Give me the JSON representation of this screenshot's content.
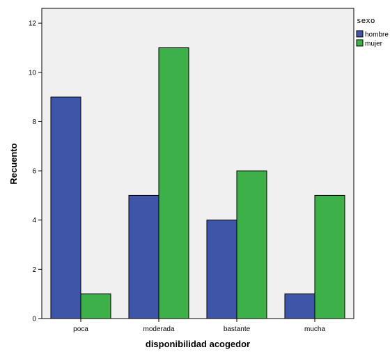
{
  "chart_data": {
    "type": "bar",
    "xlabel": "disponibilidad acogedor",
    "ylabel": "Recuento",
    "categories": [
      "poca",
      "moderada",
      "bastante",
      "mucha"
    ],
    "series": [
      {
        "name": "hombre",
        "color": "#3f55a8",
        "values": [
          9,
          5,
          4,
          1
        ]
      },
      {
        "name": "mujer",
        "color": "#3db04a",
        "values": [
          1,
          11,
          6,
          5
        ]
      }
    ],
    "ylim": [
      0,
      12.6
    ],
    "yticks": [
      0,
      2,
      4,
      6,
      8,
      10,
      12
    ],
    "legend": {
      "title": "sexo",
      "placement": "right"
    },
    "grid": false,
    "plot_background": "#f0f0f0"
  }
}
